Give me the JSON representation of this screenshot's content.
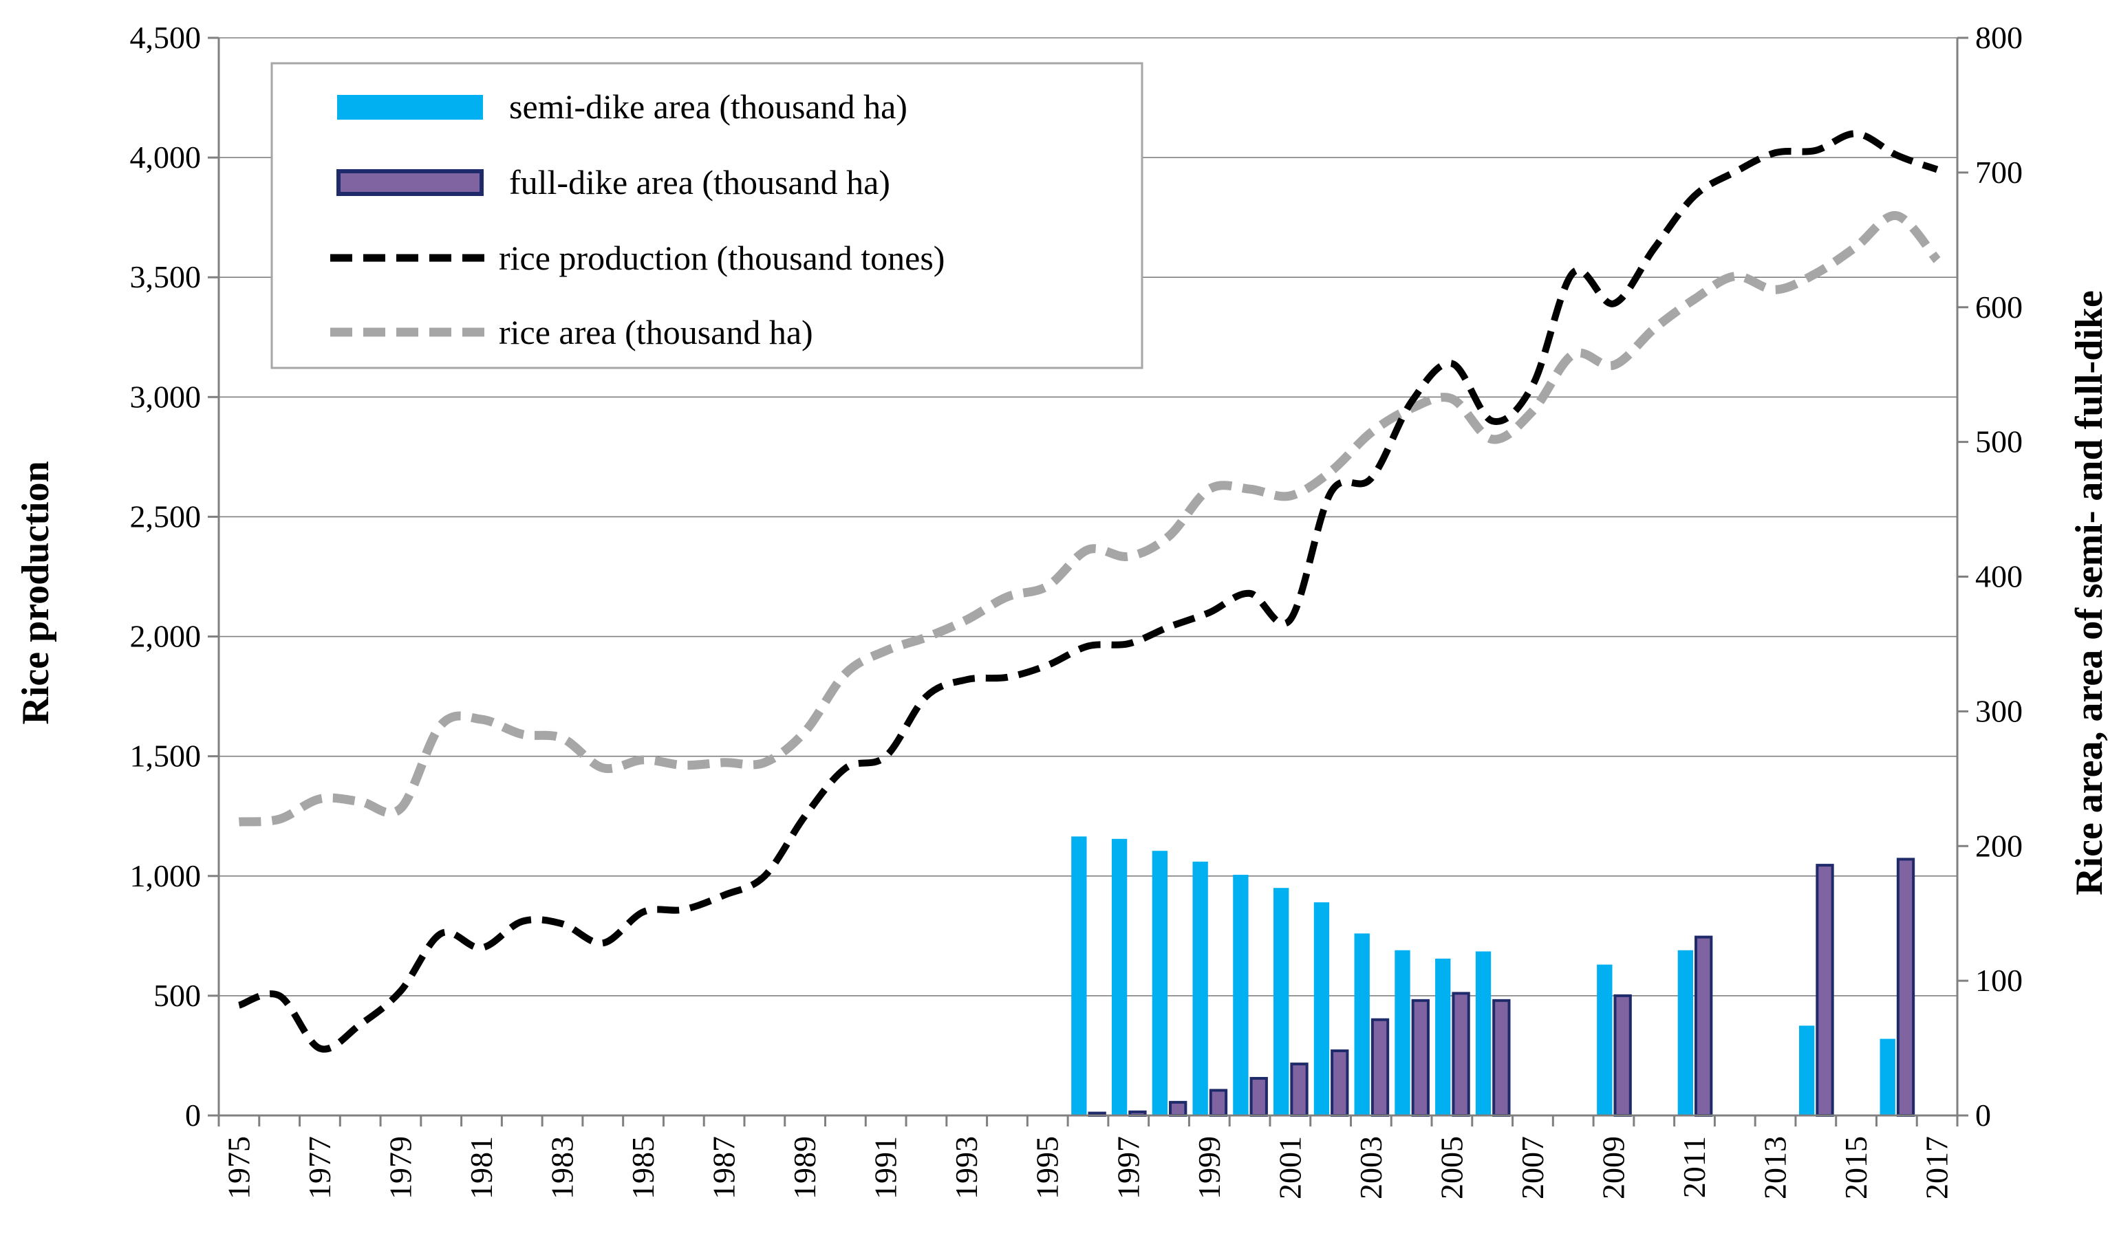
{
  "chart_data": {
    "type": "bar+line",
    "colors": {
      "semi_dike": "#00b0f0",
      "full_dike_fill": "#8064a2",
      "full_dike_border": "#1f2a6b",
      "production": "#000000",
      "rice_area": "#a6a6a6",
      "grid": "#808080",
      "axis": "#808080"
    },
    "y_left": {
      "label": "Rice production",
      "range": [
        0,
        4500
      ],
      "ticks": [
        "0",
        "500",
        "1,000",
        "1,500",
        "2,000",
        "2,500",
        "3,000",
        "3,500",
        "4,000",
        "4,500"
      ]
    },
    "y_right": {
      "label": "Rice area, area of semi- and full-dike",
      "range": [
        0,
        800
      ],
      "ticks": [
        "0",
        "100",
        "200",
        "300",
        "400",
        "500",
        "600",
        "700",
        "800"
      ]
    },
    "x": {
      "range": [
        1975,
        2017
      ],
      "ticks": [
        "1975",
        "1977",
        "1979",
        "1981",
        "1983",
        "1985",
        "1987",
        "1989",
        "1991",
        "1993",
        "1995",
        "1997",
        "1999",
        "2001",
        "2003",
        "2005",
        "2007",
        "2009",
        "2011",
        "2013",
        "2015",
        "2017"
      ]
    },
    "legend": {
      "position": "top-left",
      "items": [
        {
          "key": "semi",
          "label": "semi-dike area (thousand ha)"
        },
        {
          "key": "full",
          "label": "full-dike area (thousand ha)"
        },
        {
          "key": "production",
          "label": "rice production (thousand tones)"
        },
        {
          "key": "area",
          "label": "rice area (thousand ha)"
        }
      ]
    },
    "series": [
      {
        "name": "rice production (thousand tones)",
        "type": "line",
        "axis": "left",
        "style": "dashed",
        "x": [
          1975,
          1976,
          1977,
          1978,
          1979,
          1980,
          1981,
          1982,
          1983,
          1984,
          1985,
          1986,
          1987,
          1988,
          1989,
          1990,
          1991,
          1992,
          1993,
          1994,
          1995,
          1996,
          1997,
          1998,
          1999,
          2000,
          2001,
          2002,
          2003,
          2004,
          2005,
          2006,
          2007,
          2008,
          2009,
          2010,
          2011,
          2012,
          2013,
          2014,
          2015,
          2016,
          2017
        ],
        "values": [
          460,
          500,
          280,
          380,
          520,
          760,
          700,
          810,
          800,
          720,
          850,
          860,
          920,
          1000,
          1250,
          1450,
          1500,
          1750,
          1820,
          1830,
          1880,
          1960,
          1970,
          2040,
          2100,
          2180,
          2070,
          2600,
          2660,
          2980,
          3140,
          2900,
          3050,
          3520,
          3390,
          3620,
          3840,
          3940,
          4020,
          4030,
          4100,
          4010,
          3950
        ]
      },
      {
        "name": "rice area (thousand ha)",
        "type": "line",
        "axis": "right",
        "style": "dashed",
        "x": [
          1975,
          1976,
          1977,
          1978,
          1979,
          1980,
          1981,
          1982,
          1983,
          1984,
          1985,
          1986,
          1987,
          1988,
          1989,
          1990,
          1991,
          1992,
          1993,
          1994,
          1995,
          1996,
          1997,
          1998,
          1999,
          2000,
          2001,
          2002,
          2003,
          2004,
          2005,
          2006,
          2007,
          2008,
          2009,
          2010,
          2011,
          2012,
          2013,
          2014,
          2015,
          2016,
          2017
        ],
        "values": [
          218,
          220,
          235,
          233,
          228,
          290,
          294,
          283,
          280,
          258,
          264,
          260,
          262,
          262,
          285,
          328,
          345,
          355,
          368,
          385,
          393,
          420,
          415,
          430,
          465,
          465,
          460,
          478,
          507,
          525,
          532,
          502,
          523,
          565,
          557,
          584,
          606,
          623,
          613,
          625,
          645,
          668,
          635
        ]
      },
      {
        "name": "semi-dike area (thousand ha)",
        "type": "bar",
        "axis": "left",
        "x": [
          1996,
          1997,
          1998,
          1999,
          2000,
          2001,
          2002,
          2003,
          2004,
          2005,
          2006,
          2009,
          2011,
          2014,
          2016
        ],
        "values": [
          1165,
          1155,
          1105,
          1060,
          1005,
          950,
          890,
          760,
          690,
          655,
          685,
          630,
          690,
          375,
          320
        ]
      },
      {
        "name": "full-dike area (thousand ha)",
        "type": "bar",
        "axis": "left",
        "x": [
          1996,
          1997,
          1998,
          1999,
          2000,
          2001,
          2002,
          2003,
          2004,
          2005,
          2006,
          2009,
          2011,
          2014,
          2016
        ],
        "values": [
          10,
          15,
          55,
          105,
          155,
          215,
          270,
          400,
          480,
          510,
          480,
          500,
          745,
          1045,
          1070
        ]
      }
    ]
  }
}
